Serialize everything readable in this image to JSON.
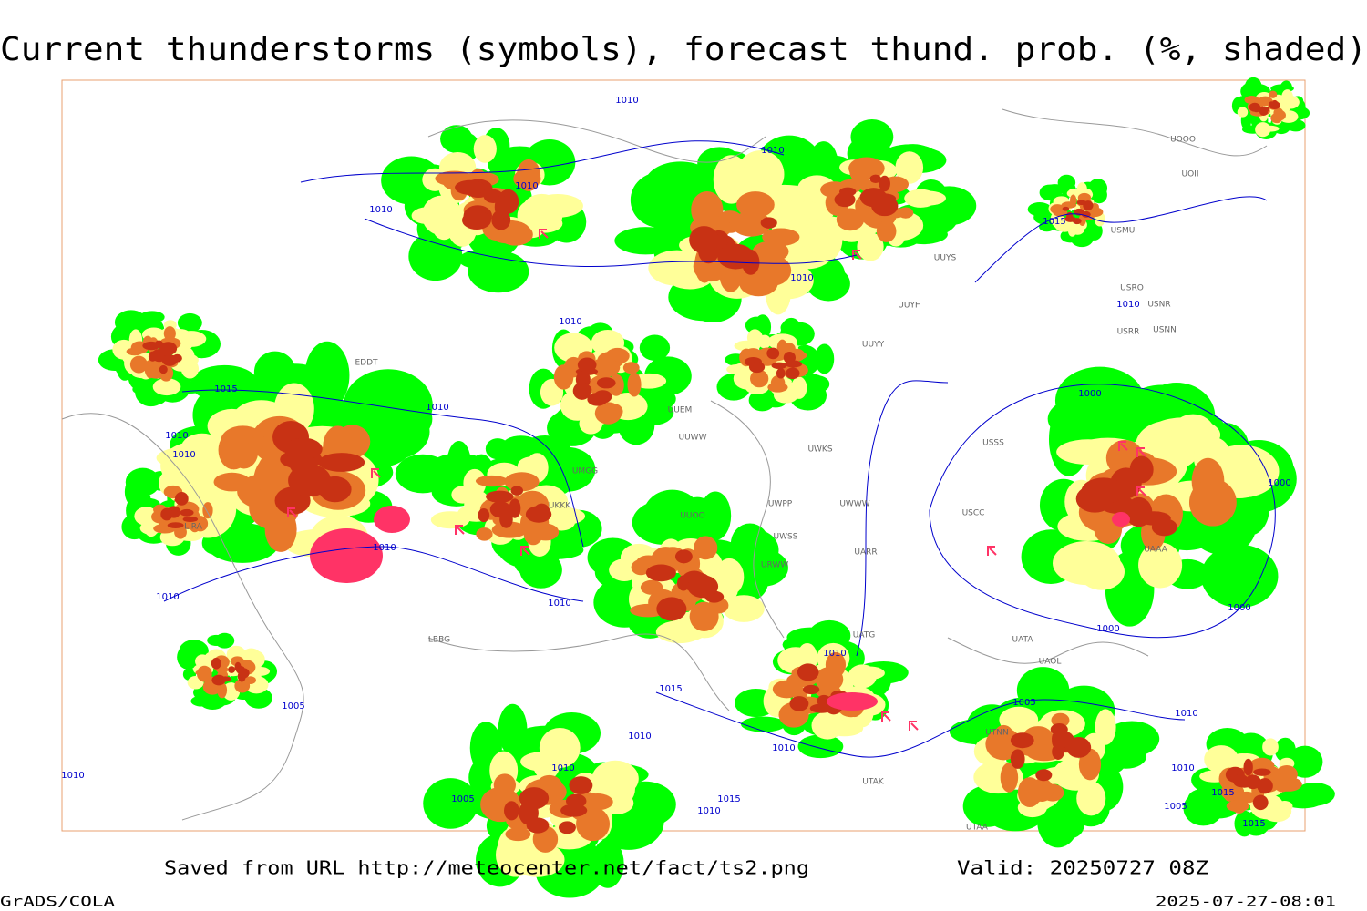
{
  "header": {
    "title": "Current thunderstorms (symbols), forecast thund. prob. (%, shaded)"
  },
  "footer": {
    "source": "Saved from URL http://meteocenter.net/fact/ts2.png",
    "valid": "Valid: 20250727 08Z",
    "software": "GrADS/COLA",
    "timestamp": "2025-07-27-08:01"
  },
  "isobar_labels": [
    "1010",
    "1010",
    "1010",
    "1010",
    "1015",
    "1010",
    "1010",
    "1010",
    "1015",
    "1010",
    "1000",
    "1010",
    "1010",
    "1000",
    "1010",
    "1010",
    "1010",
    "1000",
    "1000",
    "1010",
    "1015",
    "1005",
    "1005",
    "1010",
    "1010",
    "1010",
    "1005",
    "1015",
    "1010",
    "1005",
    "1015",
    "1015",
    "1010",
    "1010",
    "1010"
  ],
  "stations": [
    "UUYS",
    "UUYH",
    "UUYY",
    "UUEM",
    "UUWW",
    "UWKS",
    "UWPP",
    "UWWW",
    "UWSS",
    "UARR",
    "URWW",
    "UATG",
    "UATA",
    "UAOL",
    "UTNN",
    "UTAK",
    "UTAA",
    "UMGG",
    "UUOO",
    "UKKK",
    "EDDT",
    "LIRA",
    "LBBG",
    "USRR",
    "USNN",
    "USNR",
    "USRO",
    "USMU",
    "UOOO",
    "UOII",
    "USSS",
    "USCC",
    "UAAA"
  ]
}
